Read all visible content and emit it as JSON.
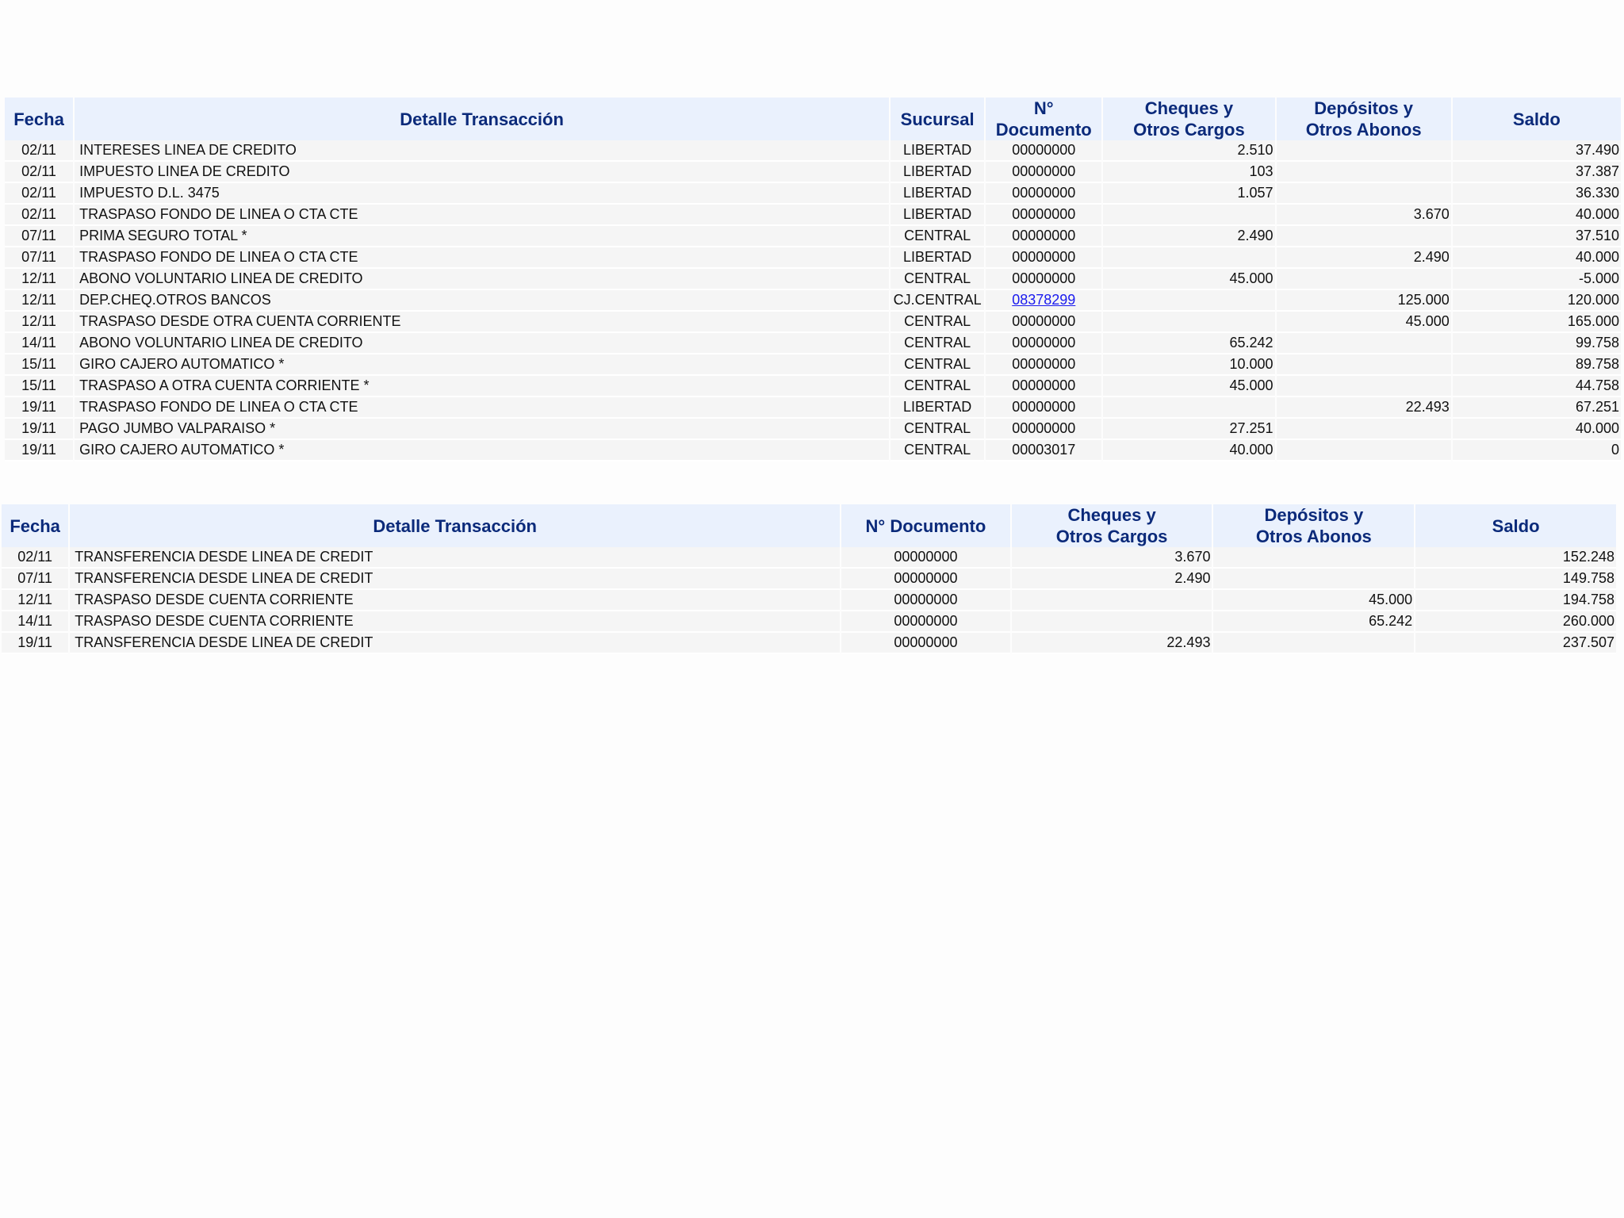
{
  "table1": {
    "headers": {
      "fecha": "Fecha",
      "detalle": "Detalle Transacción",
      "sucursal": "Sucursal",
      "doc_line1": "N°",
      "doc_line2": "Documento",
      "cargos_line1": "Cheques y",
      "cargos_line2": "Otros Cargos",
      "abonos_line1": "Depósitos y",
      "abonos_line2": "Otros Abonos",
      "saldo": "Saldo"
    },
    "rows": [
      {
        "fecha": "02/11",
        "detalle": "INTERESES LINEA DE CREDITO",
        "sucursal": "LIBERTAD",
        "documento": "00000000",
        "cargos": "2.510",
        "abonos": "",
        "saldo": "37.490"
      },
      {
        "fecha": "02/11",
        "detalle": "IMPUESTO LINEA DE CREDITO",
        "sucursal": "LIBERTAD",
        "documento": "00000000",
        "cargos": "103",
        "abonos": "",
        "saldo": "37.387"
      },
      {
        "fecha": "02/11",
        "detalle": "IMPUESTO D.L. 3475",
        "sucursal": "LIBERTAD",
        "documento": "00000000",
        "cargos": "1.057",
        "abonos": "",
        "saldo": "36.330"
      },
      {
        "fecha": "02/11",
        "detalle": "TRASPASO FONDO DE LINEA O CTA CTE",
        "sucursal": "LIBERTAD",
        "documento": "00000000",
        "cargos": "",
        "abonos": "3.670",
        "saldo": "40.000"
      },
      {
        "fecha": "07/11",
        "detalle": "PRIMA SEGURO TOTAL *",
        "sucursal": "CENTRAL",
        "documento": "00000000",
        "cargos": "2.490",
        "abonos": "",
        "saldo": "37.510"
      },
      {
        "fecha": "07/11",
        "detalle": "TRASPASO FONDO DE LINEA O CTA CTE",
        "sucursal": "LIBERTAD",
        "documento": "00000000",
        "cargos": "",
        "abonos": "2.490",
        "saldo": "40.000"
      },
      {
        "fecha": "12/11",
        "detalle": "ABONO VOLUNTARIO LINEA DE CREDITO",
        "sucursal": "CENTRAL",
        "documento": "00000000",
        "cargos": "45.000",
        "abonos": "",
        "saldo": "-5.000"
      },
      {
        "fecha": "12/11",
        "detalle": "DEP.CHEQ.OTROS BANCOS",
        "sucursal": "CJ.CENTRAL",
        "documento": "08378299",
        "cargos": "",
        "abonos": "125.000",
        "saldo": "120.000"
      },
      {
        "fecha": "12/11",
        "detalle": "TRASPASO DESDE OTRA CUENTA CORRIENTE",
        "sucursal": "CENTRAL",
        "documento": "00000000",
        "cargos": "",
        "abonos": "45.000",
        "saldo": "165.000"
      },
      {
        "fecha": "14/11",
        "detalle": "ABONO VOLUNTARIO LINEA DE CREDITO",
        "sucursal": "CENTRAL",
        "documento": "00000000",
        "cargos": "65.242",
        "abonos": "",
        "saldo": "99.758"
      },
      {
        "fecha": "15/11",
        "detalle": "GIRO CAJERO AUTOMATICO *",
        "sucursal": "CENTRAL",
        "documento": "00000000",
        "cargos": "10.000",
        "abonos": "",
        "saldo": "89.758"
      },
      {
        "fecha": "15/11",
        "detalle": "TRASPASO A OTRA CUENTA CORRIENTE *",
        "sucursal": "CENTRAL",
        "documento": "00000000",
        "cargos": "45.000",
        "abonos": "",
        "saldo": "44.758"
      },
      {
        "fecha": "19/11",
        "detalle": "TRASPASO FONDO DE LINEA O CTA CTE",
        "sucursal": "LIBERTAD",
        "documento": "00000000",
        "cargos": "",
        "abonos": "22.493",
        "saldo": "67.251"
      },
      {
        "fecha": "19/11",
        "detalle": "PAGO JUMBO VALPARAISO *",
        "sucursal": "CENTRAL",
        "documento": "00000000",
        "cargos": "27.251",
        "abonos": "",
        "saldo": "40.000"
      },
      {
        "fecha": "19/11",
        "detalle": "GIRO CAJERO AUTOMATICO *",
        "sucursal": "CENTRAL",
        "documento": "00003017",
        "cargos": "40.000",
        "abonos": "",
        "saldo": "0"
      }
    ]
  },
  "table2": {
    "headers": {
      "fecha": "Fecha",
      "detalle": "Detalle Transacción",
      "documento": "N° Documento",
      "cargos_line1": "Cheques y",
      "cargos_line2": "Otros Cargos",
      "abonos_line1": "Depósitos y",
      "abonos_line2": "Otros Abonos",
      "saldo": "Saldo"
    },
    "rows": [
      {
        "fecha": "02/11",
        "detalle": "TRANSFERENCIA DESDE LINEA DE CREDIT",
        "documento": "00000000",
        "cargos": "3.670",
        "abonos": "",
        "saldo": "152.248"
      },
      {
        "fecha": "07/11",
        "detalle": "TRANSFERENCIA DESDE LINEA DE CREDIT",
        "documento": "00000000",
        "cargos": "2.490",
        "abonos": "",
        "saldo": "149.758"
      },
      {
        "fecha": "12/11",
        "detalle": "TRASPASO DESDE CUENTA CORRIENTE",
        "documento": "00000000",
        "cargos": "",
        "abonos": "45.000",
        "saldo": "194.758"
      },
      {
        "fecha": "14/11",
        "detalle": "TRASPASO DESDE CUENTA CORRIENTE",
        "documento": "00000000",
        "cargos": "",
        "abonos": "65.242",
        "saldo": "260.000"
      },
      {
        "fecha": "19/11",
        "detalle": "TRANSFERENCIA DESDE LINEA DE CREDIT",
        "documento": "00000000",
        "cargos": "22.493",
        "abonos": "",
        "saldo": "237.507"
      }
    ]
  },
  "colors": {
    "header_bg": "#eaf1fd",
    "header_text": "#0b2a7a",
    "row_bg": "#f5f5f5",
    "link": "#1a1aee"
  }
}
